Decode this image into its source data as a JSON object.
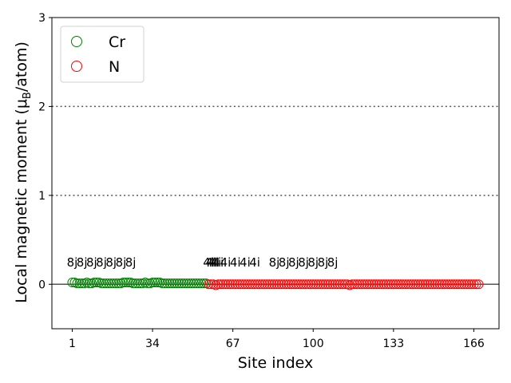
{
  "chart_data": {
    "type": "scatter",
    "xlabel": "Site index",
    "ylabel": {
      "before": "Local magnetic moment (μ",
      "sub": "B",
      "after": "/atom)"
    },
    "xlim": [
      -7.35,
      176.35
    ],
    "ylim": [
      -0.5,
      3
    ],
    "xticks": [
      1,
      34,
      67,
      100,
      133,
      166
    ],
    "yticks": [
      0,
      1,
      2,
      3
    ],
    "hlines": [
      {
        "y": 0,
        "style": "solid",
        "color": "#555555"
      },
      {
        "y": 1,
        "style": "dotted",
        "color": "#555555"
      },
      {
        "y": 2,
        "style": "dotted",
        "color": "#555555"
      }
    ],
    "legend": "upper left",
    "series": [
      {
        "name": "Cr",
        "color": "green",
        "x": [
          1,
          2,
          3,
          4,
          5,
          6,
          7,
          8,
          9,
          10,
          11,
          12,
          13,
          14,
          15,
          16,
          17,
          18,
          19,
          20,
          21,
          22,
          23,
          24,
          25,
          26,
          27,
          28,
          29,
          30,
          31,
          32,
          33,
          34,
          35,
          36,
          37,
          38,
          39,
          40,
          41,
          42,
          43,
          44,
          45,
          46,
          47,
          48,
          49,
          50,
          51,
          52,
          53,
          54,
          55,
          56
        ],
        "values": [
          0.02,
          0.02,
          0.01,
          0.01,
          0.01,
          0.01,
          0.02,
          0.01,
          0.01,
          0.02,
          0.02,
          0.02,
          0.01,
          0.01,
          0.01,
          0.01,
          0.01,
          0.01,
          0.01,
          0.01,
          0.01,
          0.02,
          0.02,
          0.02,
          0.02,
          0.01,
          0.01,
          0.01,
          0.01,
          0.01,
          0.02,
          0.01,
          0.01,
          0.02,
          0.02,
          0.02,
          0.02,
          0.01,
          0.01,
          0.01,
          0.01,
          0.01,
          0.01,
          0.01,
          0.01,
          0.01,
          0.01,
          0.01,
          0.01,
          0.01,
          0.01,
          0.01,
          0.01,
          0.01,
          0.01,
          0.01
        ]
      },
      {
        "name": "N",
        "color": "red",
        "x": [
          57,
          58,
          59,
          60,
          61,
          62,
          63,
          64,
          65,
          66,
          67,
          68,
          69,
          70,
          71,
          72,
          73,
          74,
          75,
          76,
          77,
          78,
          79,
          80,
          81,
          82,
          83,
          84,
          85,
          86,
          87,
          88,
          89,
          90,
          91,
          92,
          93,
          94,
          95,
          96,
          97,
          98,
          99,
          100,
          101,
          102,
          103,
          104,
          105,
          106,
          107,
          108,
          109,
          110,
          111,
          112,
          113,
          114,
          115,
          116,
          117,
          118,
          119,
          120,
          121,
          122,
          123,
          124,
          125,
          126,
          127,
          128,
          129,
          130,
          131,
          132,
          133,
          134,
          135,
          136,
          137,
          138,
          139,
          140,
          141,
          142,
          143,
          144,
          145,
          146,
          147,
          148,
          149,
          150,
          151,
          152,
          153,
          154,
          155,
          156,
          157,
          158,
          159,
          160,
          161,
          162,
          163,
          164,
          165,
          166,
          167,
          168
        ],
        "values": [
          0,
          0,
          0,
          -0.01,
          0,
          0,
          0,
          0,
          0,
          0,
          0,
          0,
          0,
          0,
          0,
          0,
          0,
          0,
          0,
          0,
          0,
          0,
          0,
          0,
          0,
          0,
          0,
          0,
          0,
          0,
          0,
          0,
          0,
          0,
          0,
          0,
          0,
          0,
          0,
          0,
          0,
          0,
          0,
          0,
          0,
          0,
          0,
          0,
          0,
          0,
          0,
          0,
          0,
          0,
          0,
          0,
          0,
          0,
          -0.01,
          0,
          0,
          0,
          0,
          0,
          0,
          0,
          0,
          0,
          0,
          0,
          0,
          0,
          0,
          0,
          0,
          0,
          0,
          0,
          0,
          0,
          0,
          0,
          0,
          0,
          0,
          0,
          0,
          0,
          0,
          0,
          0,
          0,
          0,
          0,
          0,
          0,
          0,
          0,
          0,
          0,
          0,
          0,
          0,
          0,
          0,
          0,
          0,
          0,
          0,
          0,
          0,
          0
        ]
      }
    ],
    "annotations": [
      {
        "text": "8j",
        "x": 1,
        "y": 0.2
      },
      {
        "text": "8j",
        "x": 5,
        "y": 0.2
      },
      {
        "text": "8j",
        "x": 9,
        "y": 0.2
      },
      {
        "text": "8j",
        "x": 13,
        "y": 0.2
      },
      {
        "text": "8j",
        "x": 17,
        "y": 0.2
      },
      {
        "text": "8j",
        "x": 21,
        "y": 0.2
      },
      {
        "text": "8j",
        "x": 25,
        "y": 0.2
      },
      {
        "text": "4i",
        "x": 57,
        "y": 0.2
      },
      {
        "text": "4i",
        "x": 58,
        "y": 0.2
      },
      {
        "text": "4i",
        "x": 59,
        "y": 0.2
      },
      {
        "text": "4i",
        "x": 60,
        "y": 0.2
      },
      {
        "text": "4i",
        "x": 61,
        "y": 0.2
      },
      {
        "text": "4i",
        "x": 64,
        "y": 0.2
      },
      {
        "text": "4i",
        "x": 68,
        "y": 0.2
      },
      {
        "text": "4i",
        "x": 72,
        "y": 0.2
      },
      {
        "text": "4i",
        "x": 76,
        "y": 0.2
      },
      {
        "text": "8j",
        "x": 84,
        "y": 0.2
      },
      {
        "text": "8j",
        "x": 88,
        "y": 0.2
      },
      {
        "text": "8j",
        "x": 92,
        "y": 0.2
      },
      {
        "text": "8j",
        "x": 96,
        "y": 0.2
      },
      {
        "text": "8j",
        "x": 100,
        "y": 0.2
      },
      {
        "text": "8j",
        "x": 104,
        "y": 0.2
      },
      {
        "text": "8j",
        "x": 108,
        "y": 0.2
      }
    ]
  }
}
